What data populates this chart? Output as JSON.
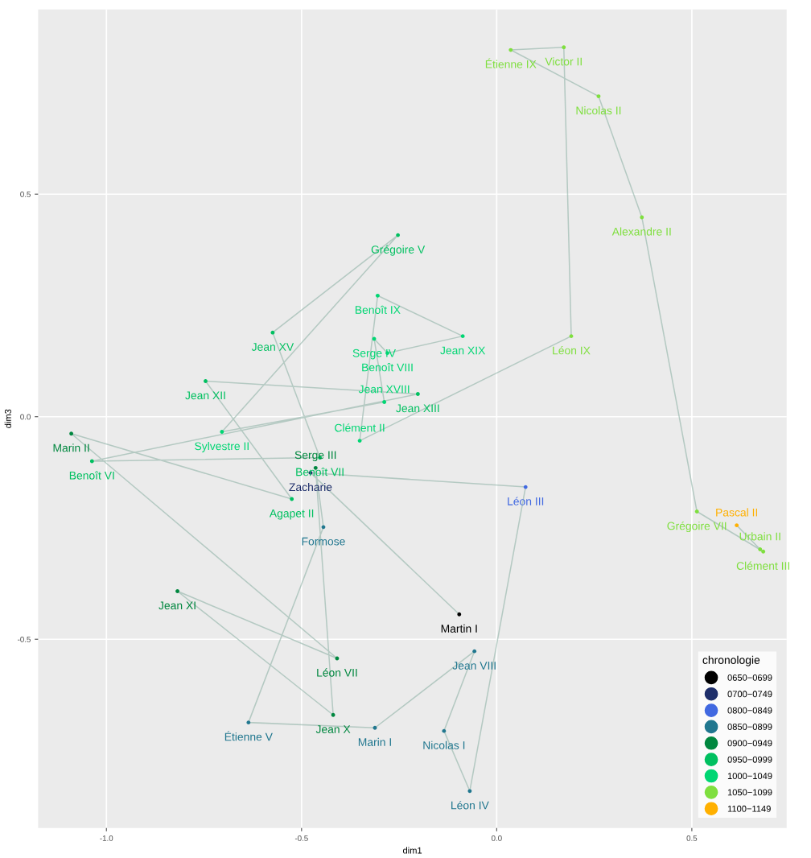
{
  "chart_data": {
    "type": "scatter",
    "xlabel": "dim1",
    "ylabel": "dim3",
    "legend_title": "chronologie",
    "legend": "bottom right",
    "grid": true,
    "marker": "circle",
    "xlim": [
      -1.175,
      0.743
    ],
    "ylim": [
      -0.924,
      0.915
    ],
    "xticks": [
      {
        "value": -1.0,
        "label": "-1.0"
      },
      {
        "value": -0.5,
        "label": "-0.5"
      },
      {
        "value": 0.0,
        "label": "0.0"
      },
      {
        "value": 0.5,
        "label": "0.5"
      }
    ],
    "yticks": [
      {
        "value": -0.5,
        "label": "-0.5"
      },
      {
        "value": 0.0,
        "label": "0.0"
      },
      {
        "value": 0.5,
        "label": "0.5"
      }
    ],
    "series": [
      {
        "type": "line",
        "marker": "none",
        "color": "#8fb3a6",
        "x": [
          -0.096,
          -0.477,
          0.074,
          -0.069,
          -0.135,
          -0.057,
          -0.312,
          -0.636,
          -0.444,
          -0.464,
          -0.419,
          -0.818,
          -0.409,
          -1.09,
          -0.525,
          -0.746,
          -0.202,
          -1.037,
          -0.453,
          -0.574,
          -0.253,
          -0.704,
          -0.288,
          -0.314,
          -0.28,
          -0.087,
          -0.305,
          -0.351,
          0.191,
          0.172,
          0.036,
          0.261,
          0.372,
          0.513,
          0.683,
          0.675,
          0.615
        ],
        "values": [
          -0.444,
          -0.126,
          -0.158,
          -0.841,
          -0.706,
          -0.527,
          -0.699,
          -0.687,
          -0.248,
          -0.115,
          -0.67,
          -0.392,
          -0.543,
          -0.038,
          -0.185,
          0.08,
          0.051,
          -0.1,
          -0.092,
          0.189,
          0.408,
          -0.034,
          0.033,
          0.175,
          0.143,
          0.181,
          0.272,
          -0.054,
          0.181,
          0.83,
          0.824,
          0.72,
          0.448,
          -0.213,
          -0.303,
          -0.298,
          -0.244
        ]
      },
      {
        "name": "0650−0699",
        "color": "#000000",
        "x": [
          -0.096
        ],
        "values": [
          -0.444
        ],
        "value_labels": [
          "Martin I"
        ]
      },
      {
        "name": "0700−0749",
        "color": "#1f2f6b",
        "x": [
          -0.477
        ],
        "values": [
          -0.126
        ],
        "value_labels": [
          "Zacharie"
        ]
      },
      {
        "name": "0800−0849",
        "color": "#4169e1",
        "x": [
          0.074
        ],
        "values": [
          -0.158
        ],
        "value_labels": [
          "Léon III"
        ]
      },
      {
        "name": "0850−0899",
        "color": "#21778f",
        "x": [
          -0.069,
          -0.135,
          -0.057,
          -0.312,
          -0.636,
          -0.444
        ],
        "values": [
          -0.841,
          -0.706,
          -0.527,
          -0.699,
          -0.687,
          -0.248
        ],
        "value_labels": [
          "Léon IV",
          "Nicolas I",
          "Jean VIII",
          "Marin I",
          "Étienne V",
          "Formose"
        ]
      },
      {
        "name": "0900−0949",
        "color": "#00873f",
        "x": [
          -0.464,
          -0.419,
          -0.818,
          -0.409,
          -1.09
        ],
        "values": [
          -0.115,
          -0.67,
          -0.392,
          -0.543,
          -0.038
        ],
        "value_labels": [
          "Serge III",
          "Jean X",
          "Jean XI",
          "Léon VII",
          "Marin II"
        ]
      },
      {
        "name": "0950−0999",
        "color": "#00c060",
        "x": [
          -0.525,
          -0.746,
          -0.202,
          -1.037,
          -0.453,
          -0.574,
          -0.253
        ],
        "values": [
          -0.185,
          0.08,
          0.051,
          -0.1,
          -0.092,
          0.189,
          0.408
        ],
        "value_labels": [
          "Agapet II",
          "Jean XII",
          "Jean XIII",
          "Benoît VI",
          "Benoît VII",
          "Jean XV",
          "Grégoire V"
        ]
      },
      {
        "name": "1000−1049",
        "color": "#00d673",
        "x": [
          -0.704,
          -0.288,
          -0.314,
          -0.28,
          -0.087,
          -0.305,
          -0.351
        ],
        "values": [
          -0.034,
          0.033,
          0.175,
          0.143,
          0.181,
          0.272,
          -0.054
        ],
        "value_labels": [
          "Sylvestre II",
          "Jean XVIII",
          "Serge IV",
          "Benoît VIII",
          "Jean XIX",
          "Benoît IX",
          "Clément II"
        ]
      },
      {
        "name": "1050−1099",
        "color": "#7fdf3f",
        "x": [
          0.191,
          0.172,
          0.036,
          0.261,
          0.372,
          0.513,
          0.683,
          0.675
        ],
        "values": [
          0.181,
          0.83,
          0.824,
          0.72,
          0.448,
          -0.213,
          -0.303,
          -0.298
        ],
        "value_labels": [
          "Léon IX",
          "Victor II",
          "Étienne IX",
          "Nicolas II",
          "Alexandre II",
          "Grégoire VII",
          "Clément III",
          "Urbain II"
        ]
      },
      {
        "name": "1100−1149",
        "color": "#ffb000",
        "x": [
          0.615
        ],
        "values": [
          -0.244
        ],
        "value_labels": [
          "Pascal II"
        ]
      }
    ]
  }
}
